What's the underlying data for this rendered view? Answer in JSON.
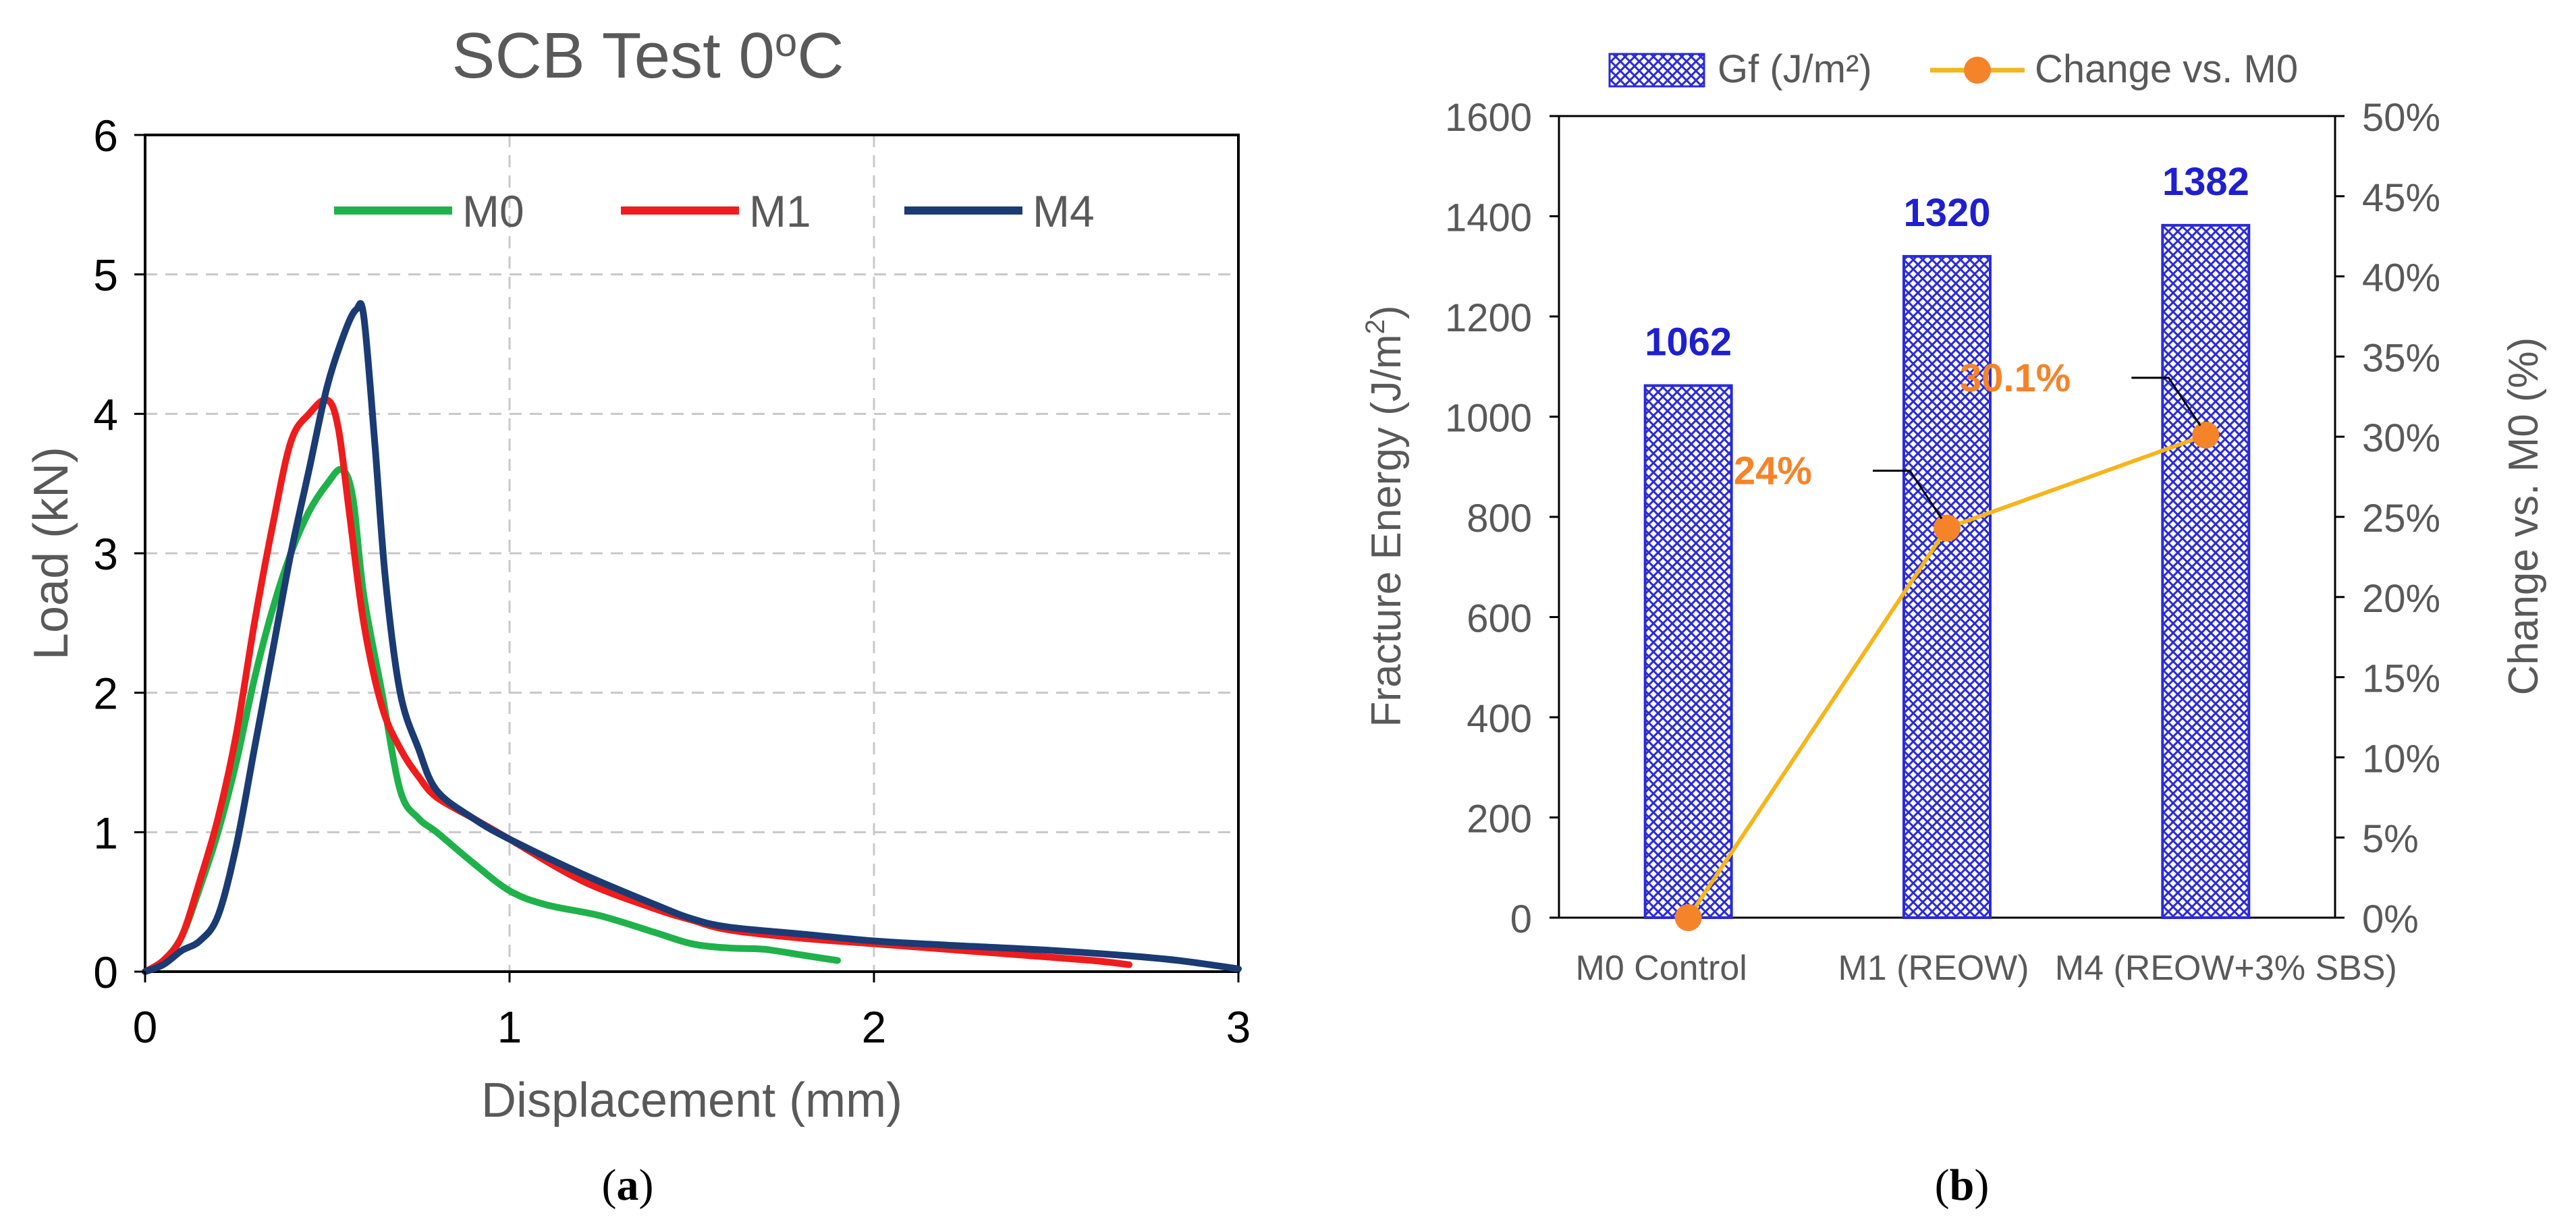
{
  "chart_data": [
    {
      "type": "line",
      "title": "SCB Test 0oC",
      "title_parts": {
        "main": "SCB Test 0",
        "superscript": "o",
        "suffix": "C"
      },
      "xlabel": "Displacement (mm)",
      "ylabel": "Load (kN)",
      "xlim": [
        0,
        3
      ],
      "ylim": [
        0,
        6
      ],
      "xticks": [
        0,
        1,
        2,
        3
      ],
      "yticks": [
        0,
        1,
        2,
        3,
        4,
        5,
        6
      ],
      "grid": true,
      "legend_position": "top",
      "series": [
        {
          "name": "M0",
          "color": "#1fb24a",
          "x": [
            0,
            0.05,
            0.1,
            0.15,
            0.2,
            0.25,
            0.3,
            0.35,
            0.4,
            0.45,
            0.5,
            0.54,
            0.57,
            0.6,
            0.65,
            0.7,
            0.75,
            0.8,
            0.9,
            1.0,
            1.1,
            1.25,
            1.4,
            1.5,
            1.6,
            1.7,
            1.8,
            1.9
          ],
          "y": [
            0,
            0.08,
            0.25,
            0.6,
            1.0,
            1.5,
            2.1,
            2.6,
            3.0,
            3.3,
            3.5,
            3.6,
            3.4,
            2.7,
            2.0,
            1.3,
            1.1,
            1.0,
            0.78,
            0.58,
            0.48,
            0.4,
            0.28,
            0.2,
            0.17,
            0.16,
            0.12,
            0.08
          ]
        },
        {
          "name": "M1",
          "color": "#ee1c1c",
          "x": [
            0,
            0.05,
            0.1,
            0.15,
            0.2,
            0.25,
            0.3,
            0.35,
            0.4,
            0.45,
            0.5,
            0.53,
            0.56,
            0.6,
            0.65,
            0.7,
            0.75,
            0.8,
            0.9,
            1.0,
            1.2,
            1.4,
            1.5,
            1.6,
            1.8,
            2.0,
            2.2,
            2.4,
            2.6,
            2.7
          ],
          "y": [
            0,
            0.08,
            0.25,
            0.65,
            1.1,
            1.7,
            2.5,
            3.2,
            3.8,
            4.0,
            4.1,
            3.9,
            3.3,
            2.5,
            1.9,
            1.6,
            1.4,
            1.25,
            1.1,
            0.95,
            0.65,
            0.45,
            0.37,
            0.3,
            0.24,
            0.2,
            0.16,
            0.12,
            0.08,
            0.05
          ]
        },
        {
          "name": "M4",
          "color": "#1a3b73",
          "x": [
            0,
            0.05,
            0.1,
            0.15,
            0.2,
            0.25,
            0.3,
            0.35,
            0.4,
            0.45,
            0.5,
            0.55,
            0.58,
            0.6,
            0.63,
            0.66,
            0.7,
            0.75,
            0.8,
            0.9,
            1.0,
            1.2,
            1.4,
            1.5,
            1.6,
            1.8,
            2.0,
            2.2,
            2.5,
            2.8,
            3.0
          ],
          "y": [
            0,
            0.05,
            0.15,
            0.22,
            0.4,
            0.9,
            1.6,
            2.3,
            3.0,
            3.6,
            4.2,
            4.6,
            4.75,
            4.7,
            3.8,
            2.8,
            2.0,
            1.6,
            1.3,
            1.1,
            0.95,
            0.7,
            0.48,
            0.38,
            0.32,
            0.27,
            0.22,
            0.19,
            0.15,
            0.09,
            0.02
          ]
        }
      ]
    },
    {
      "type": "bar",
      "title": "",
      "categories": [
        "M0 Control",
        "M1 (REOW)",
        "M4 (REOW+3% SBS)"
      ],
      "ylabel": "Fracture Energy (J/m²)",
      "ylabel_parts": {
        "main": "Fracture Energy (J/m",
        "superscript": "2",
        "suffix": ")"
      },
      "y2label": "Change vs. M0 (%)",
      "ylim": [
        0,
        1600
      ],
      "yticks": [
        0,
        200,
        400,
        600,
        800,
        1000,
        1200,
        1400,
        1600
      ],
      "y2lim": [
        0,
        50
      ],
      "y2ticks": [
        "0%",
        "5%",
        "10%",
        "15%",
        "20%",
        "25%",
        "30%",
        "35%",
        "40%",
        "45%",
        "50%"
      ],
      "grid": false,
      "legend_position": "top",
      "series": [
        {
          "name": "Gf (J/m²)",
          "kind": "bar",
          "axis": "left",
          "color": "#2a2ad8",
          "values": [
            1062,
            1320,
            1382
          ],
          "labels": [
            "1062",
            "1320",
            "1382"
          ],
          "label_color": "#1f1fd0"
        },
        {
          "name": "Change vs. M0",
          "kind": "line",
          "axis": "right",
          "color": "#f5b51c",
          "marker_color": "#f5832a",
          "values": [
            0,
            24.3,
            30.1
          ],
          "labels": [
            "",
            "24%",
            "30.1%"
          ],
          "label_color": "#f5832a"
        }
      ]
    }
  ],
  "captions": {
    "a": "a",
    "b": "b"
  },
  "colors": {
    "axis": "#000000",
    "grid": "#c8c8c8",
    "text": "#595959"
  }
}
